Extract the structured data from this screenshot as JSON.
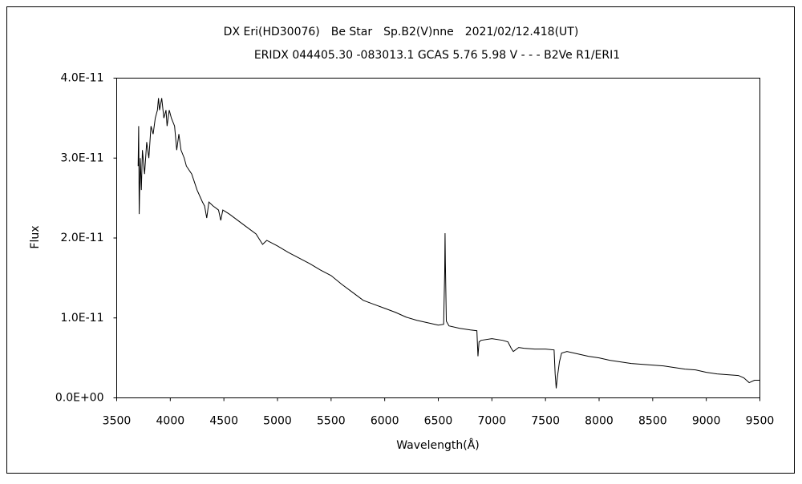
{
  "chart_data": {
    "type": "line",
    "title": "DX Eri(HD30076)　Be Star　Sp.B2(V)nne　2021/02/12.418(UT)",
    "subtitle": "ERIDX 044405.30 -083013.1 GCAS 5.76 5.98 V - - - B2Ve R1/ERI1",
    "x_label": "Wavelength(Å)",
    "y_label": "Flux",
    "color": "#000000",
    "grid": false,
    "xlim": [
      3500,
      9500
    ],
    "xticks": [
      3500,
      4000,
      4500,
      5000,
      5500,
      6000,
      6500,
      7000,
      7500,
      8000,
      8500,
      9000,
      9500
    ],
    "ylim": [
      0,
      4e-11
    ],
    "yticks": [
      {
        "value": 0,
        "label": "0.0E+00"
      },
      {
        "value": 1e-11,
        "label": "1.0E-11"
      },
      {
        "value": 2e-11,
        "label": "2.0E-11"
      },
      {
        "value": 3e-11,
        "label": "3.0E-11"
      },
      {
        "value": 4e-11,
        "label": "4.0E-11"
      }
    ],
    "x": [
      3700,
      3705,
      3710,
      3720,
      3730,
      3740,
      3760,
      3780,
      3800,
      3820,
      3840,
      3860,
      3880,
      3890,
      3900,
      3920,
      3940,
      3960,
      3970,
      3990,
      4010,
      4040,
      4060,
      4080,
      4100,
      4130,
      4150,
      4200,
      4250,
      4300,
      4320,
      4340,
      4360,
      4400,
      4450,
      4471,
      4490,
      4550,
      4600,
      4700,
      4800,
      4861,
      4900,
      5000,
      5100,
      5200,
      5300,
      5400,
      5500,
      5600,
      5700,
      5800,
      5900,
      6000,
      6100,
      6200,
      6300,
      6400,
      6500,
      6550,
      6560,
      6563,
      6566,
      6575,
      6600,
      6700,
      6800,
      6860,
      6870,
      6880,
      6900,
      7000,
      7100,
      7150,
      7180,
      7200,
      7250,
      7300,
      7400,
      7500,
      7580,
      7590,
      7600,
      7610,
      7630,
      7650,
      7700,
      7800,
      7900,
      8000,
      8100,
      8200,
      8300,
      8400,
      8500,
      8600,
      8700,
      8800,
      8900,
      9000,
      9100,
      9200,
      9300,
      9350,
      9400,
      9450,
      9500
    ],
    "values": [
      2.9e-11,
      3.4e-11,
      2.3e-11,
      3e-11,
      2.6e-11,
      3.1e-11,
      2.8e-11,
      3.2e-11,
      3e-11,
      3.4e-11,
      3.3e-11,
      3.5e-11,
      3.6e-11,
      3.75e-11,
      3.6e-11,
      3.75e-11,
      3.5e-11,
      3.6e-11,
      3.4e-11,
      3.6e-11,
      3.5e-11,
      3.4e-11,
      3.1e-11,
      3.3e-11,
      3.1e-11,
      3e-11,
      2.9e-11,
      2.8e-11,
      2.6e-11,
      2.45e-11,
      2.4e-11,
      2.25e-11,
      2.45e-11,
      2.4e-11,
      2.35e-11,
      2.22e-11,
      2.35e-11,
      2.3e-11,
      2.25e-11,
      2.15e-11,
      2.05e-11,
      1.92e-11,
      1.97e-11,
      1.9e-11,
      1.82e-11,
      1.75e-11,
      1.68e-11,
      1.6e-11,
      1.53e-11,
      1.42e-11,
      1.32e-11,
      1.22e-11,
      1.17e-11,
      1.12e-11,
      1.07e-11,
      1.01e-11,
      9.7e-12,
      9.4e-12,
      9.1e-12,
      9.2e-12,
      1.6e-11,
      2.06e-11,
      1.7e-11,
      9.6e-12,
      9e-12,
      8.7e-12,
      8.5e-12,
      8.4e-12,
      5.2e-12,
      7e-12,
      7.2e-12,
      7.4e-12,
      7.2e-12,
      7e-12,
      6.2e-12,
      5.8e-12,
      6.3e-12,
      6.2e-12,
      6.1e-12,
      6.1e-12,
      6e-12,
      3e-12,
      1.2e-12,
      2.5e-12,
      4.5e-12,
      5.6e-12,
      5.8e-12,
      5.5e-12,
      5.2e-12,
      5e-12,
      4.7e-12,
      4.5e-12,
      4.3e-12,
      4.2e-12,
      4.1e-12,
      4e-12,
      3.8e-12,
      3.6e-12,
      3.5e-12,
      3.2e-12,
      3e-12,
      2.9e-12,
      2.8e-12,
      2.5e-12,
      1.9e-12,
      2.2e-12,
      2.2e-12
    ]
  }
}
